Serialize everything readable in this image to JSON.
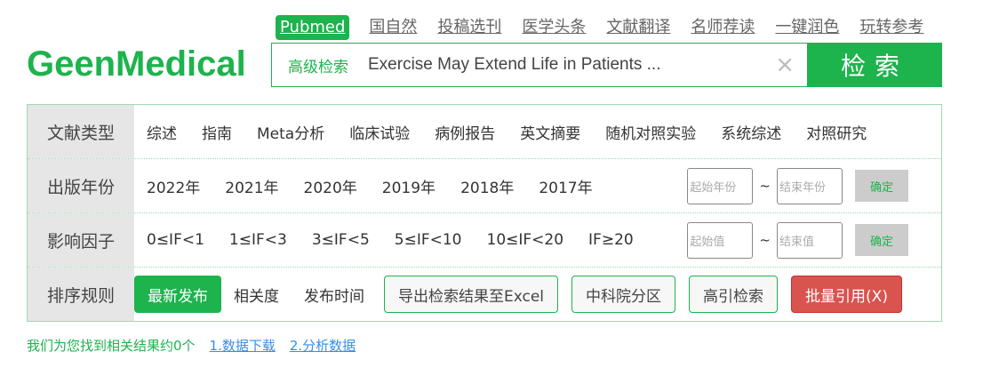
{
  "logo": "GeenMedical",
  "topnav": [
    "Pubmed",
    "国自然",
    "投稿选刊",
    "医学头条",
    "文献翻译",
    "名师荐读",
    "一键润色",
    "玩转参考"
  ],
  "search": {
    "advanced": "高级检索",
    "query": "Exercise May Extend Life in Patients ...",
    "clear_icon": "×",
    "button": "检索"
  },
  "filters": {
    "type": {
      "label": "文献类型",
      "options": [
        "综述",
        "指南",
        "Meta分析",
        "临床试验",
        "病例报告",
        "英文摘要",
        "随机对照实验",
        "系统综述",
        "对照研究"
      ]
    },
    "year": {
      "label": "出版年份",
      "options": [
        "2022年",
        "2021年",
        "2020年",
        "2019年",
        "2018年",
        "2017年"
      ],
      "start_placeholder": "起始年份",
      "end_placeholder": "结束年份",
      "sep": "~",
      "ok": "确定"
    },
    "if": {
      "label": "影响因子",
      "options": [
        "0≤IF<1",
        "1≤IF<3",
        "3≤IF<5",
        "5≤IF<10",
        "10≤IF<20",
        "IF≥20"
      ],
      "start_placeholder": "起始值",
      "end_placeholder": "结束值",
      "sep": "~",
      "ok": "确定"
    },
    "sort": {
      "label": "排序规则",
      "active": "最新发布",
      "options": [
        "相关度",
        "发布时间"
      ],
      "buttons": [
        "导出检索结果至Excel",
        "中科院分区",
        "高引检索"
      ],
      "cite": "批量引用(X)"
    }
  },
  "result": {
    "text": "我们为您找到相关结果约0个",
    "links": [
      "1.数据下载",
      "2.分析数据"
    ]
  }
}
